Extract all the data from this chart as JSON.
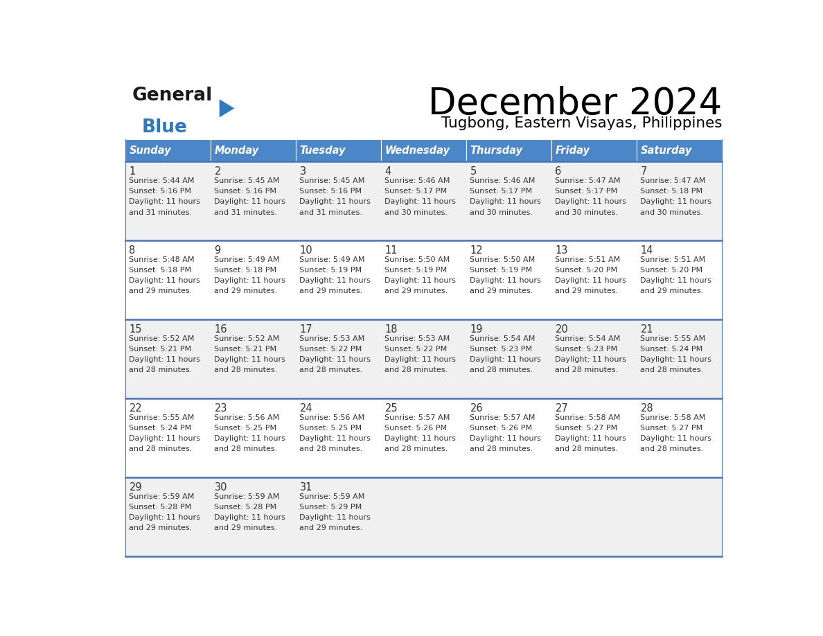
{
  "title": "December 2024",
  "subtitle": "Tugbong, Eastern Visayas, Philippines",
  "days_of_week": [
    "Sunday",
    "Monday",
    "Tuesday",
    "Wednesday",
    "Thursday",
    "Friday",
    "Saturday"
  ],
  "header_bg": "#4a86c8",
  "header_text": "#ffffff",
  "row_bg_odd": "#f0f0f0",
  "row_bg_even": "#ffffff",
  "border_color": "#4472c4",
  "text_color": "#333333",
  "calendar_data": [
    [
      {
        "day": 1,
        "sunrise": "5:44 AM",
        "sunset": "5:16 PM",
        "daylight": "11 hours and 31 minutes"
      },
      {
        "day": 2,
        "sunrise": "5:45 AM",
        "sunset": "5:16 PM",
        "daylight": "11 hours and 31 minutes"
      },
      {
        "day": 3,
        "sunrise": "5:45 AM",
        "sunset": "5:16 PM",
        "daylight": "11 hours and 31 minutes"
      },
      {
        "day": 4,
        "sunrise": "5:46 AM",
        "sunset": "5:17 PM",
        "daylight": "11 hours and 30 minutes"
      },
      {
        "day": 5,
        "sunrise": "5:46 AM",
        "sunset": "5:17 PM",
        "daylight": "11 hours and 30 minutes"
      },
      {
        "day": 6,
        "sunrise": "5:47 AM",
        "sunset": "5:17 PM",
        "daylight": "11 hours and 30 minutes"
      },
      {
        "day": 7,
        "sunrise": "5:47 AM",
        "sunset": "5:18 PM",
        "daylight": "11 hours and 30 minutes"
      }
    ],
    [
      {
        "day": 8,
        "sunrise": "5:48 AM",
        "sunset": "5:18 PM",
        "daylight": "11 hours and 29 minutes"
      },
      {
        "day": 9,
        "sunrise": "5:49 AM",
        "sunset": "5:18 PM",
        "daylight": "11 hours and 29 minutes"
      },
      {
        "day": 10,
        "sunrise": "5:49 AM",
        "sunset": "5:19 PM",
        "daylight": "11 hours and 29 minutes"
      },
      {
        "day": 11,
        "sunrise": "5:50 AM",
        "sunset": "5:19 PM",
        "daylight": "11 hours and 29 minutes"
      },
      {
        "day": 12,
        "sunrise": "5:50 AM",
        "sunset": "5:19 PM",
        "daylight": "11 hours and 29 minutes"
      },
      {
        "day": 13,
        "sunrise": "5:51 AM",
        "sunset": "5:20 PM",
        "daylight": "11 hours and 29 minutes"
      },
      {
        "day": 14,
        "sunrise": "5:51 AM",
        "sunset": "5:20 PM",
        "daylight": "11 hours and 29 minutes"
      }
    ],
    [
      {
        "day": 15,
        "sunrise": "5:52 AM",
        "sunset": "5:21 PM",
        "daylight": "11 hours and 28 minutes"
      },
      {
        "day": 16,
        "sunrise": "5:52 AM",
        "sunset": "5:21 PM",
        "daylight": "11 hours and 28 minutes"
      },
      {
        "day": 17,
        "sunrise": "5:53 AM",
        "sunset": "5:22 PM",
        "daylight": "11 hours and 28 minutes"
      },
      {
        "day": 18,
        "sunrise": "5:53 AM",
        "sunset": "5:22 PM",
        "daylight": "11 hours and 28 minutes"
      },
      {
        "day": 19,
        "sunrise": "5:54 AM",
        "sunset": "5:23 PM",
        "daylight": "11 hours and 28 minutes"
      },
      {
        "day": 20,
        "sunrise": "5:54 AM",
        "sunset": "5:23 PM",
        "daylight": "11 hours and 28 minutes"
      },
      {
        "day": 21,
        "sunrise": "5:55 AM",
        "sunset": "5:24 PM",
        "daylight": "11 hours and 28 minutes"
      }
    ],
    [
      {
        "day": 22,
        "sunrise": "5:55 AM",
        "sunset": "5:24 PM",
        "daylight": "11 hours and 28 minutes"
      },
      {
        "day": 23,
        "sunrise": "5:56 AM",
        "sunset": "5:25 PM",
        "daylight": "11 hours and 28 minutes"
      },
      {
        "day": 24,
        "sunrise": "5:56 AM",
        "sunset": "5:25 PM",
        "daylight": "11 hours and 28 minutes"
      },
      {
        "day": 25,
        "sunrise": "5:57 AM",
        "sunset": "5:26 PM",
        "daylight": "11 hours and 28 minutes"
      },
      {
        "day": 26,
        "sunrise": "5:57 AM",
        "sunset": "5:26 PM",
        "daylight": "11 hours and 28 minutes"
      },
      {
        "day": 27,
        "sunrise": "5:58 AM",
        "sunset": "5:27 PM",
        "daylight": "11 hours and 28 minutes"
      },
      {
        "day": 28,
        "sunrise": "5:58 AM",
        "sunset": "5:27 PM",
        "daylight": "11 hours and 28 minutes"
      }
    ],
    [
      {
        "day": 29,
        "sunrise": "5:59 AM",
        "sunset": "5:28 PM",
        "daylight": "11 hours and 29 minutes"
      },
      {
        "day": 30,
        "sunrise": "5:59 AM",
        "sunset": "5:28 PM",
        "daylight": "11 hours and 29 minutes"
      },
      {
        "day": 31,
        "sunrise": "5:59 AM",
        "sunset": "5:29 PM",
        "daylight": "11 hours and 29 minutes"
      },
      null,
      null,
      null,
      null
    ]
  ],
  "logo_general_color": "#1a1a1a",
  "logo_blue_color": "#2e7abf",
  "logo_triangle_color": "#2e7abf",
  "fig_width": 11.88,
  "fig_height": 9.18,
  "dpi": 100
}
